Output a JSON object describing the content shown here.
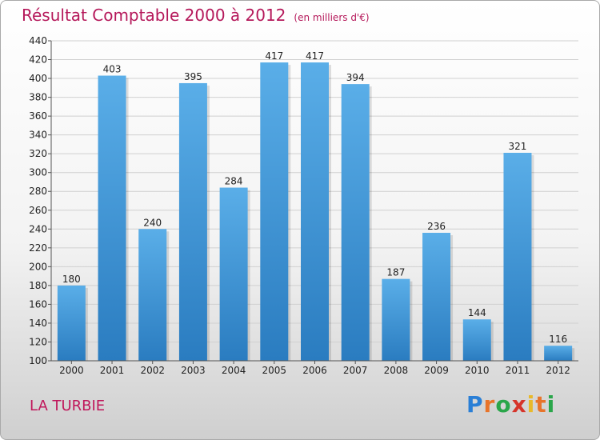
{
  "header": {
    "title": "Résultat Comptable 2000 à 2012",
    "unit": "(en milliers d'€)"
  },
  "footer": {
    "commune": "LA TURBIE",
    "logo": [
      "P",
      "r",
      "o",
      "x",
      "i",
      "t",
      "i"
    ]
  },
  "colors": {
    "bar_light": "#5aaee8",
    "bar_dark": "#2a7cc0",
    "title": "#b5185a"
  },
  "chart_data": {
    "type": "bar",
    "title": "Résultat Comptable 2000 à 2012",
    "subtitle": "(en milliers d'€)",
    "xlabel": "",
    "ylabel": "",
    "categories": [
      "2000",
      "2001",
      "2002",
      "2003",
      "2004",
      "2005",
      "2006",
      "2007",
      "2008",
      "2009",
      "2010",
      "2011",
      "2012"
    ],
    "values": [
      180,
      403,
      240,
      395,
      284,
      417,
      417,
      394,
      187,
      236,
      144,
      321,
      116
    ],
    "ylim": [
      100,
      440
    ],
    "yticks": [
      100,
      120,
      140,
      160,
      180,
      200,
      220,
      240,
      260,
      280,
      300,
      320,
      340,
      360,
      380,
      400,
      420,
      440
    ],
    "grid": true,
    "legend": "none"
  }
}
